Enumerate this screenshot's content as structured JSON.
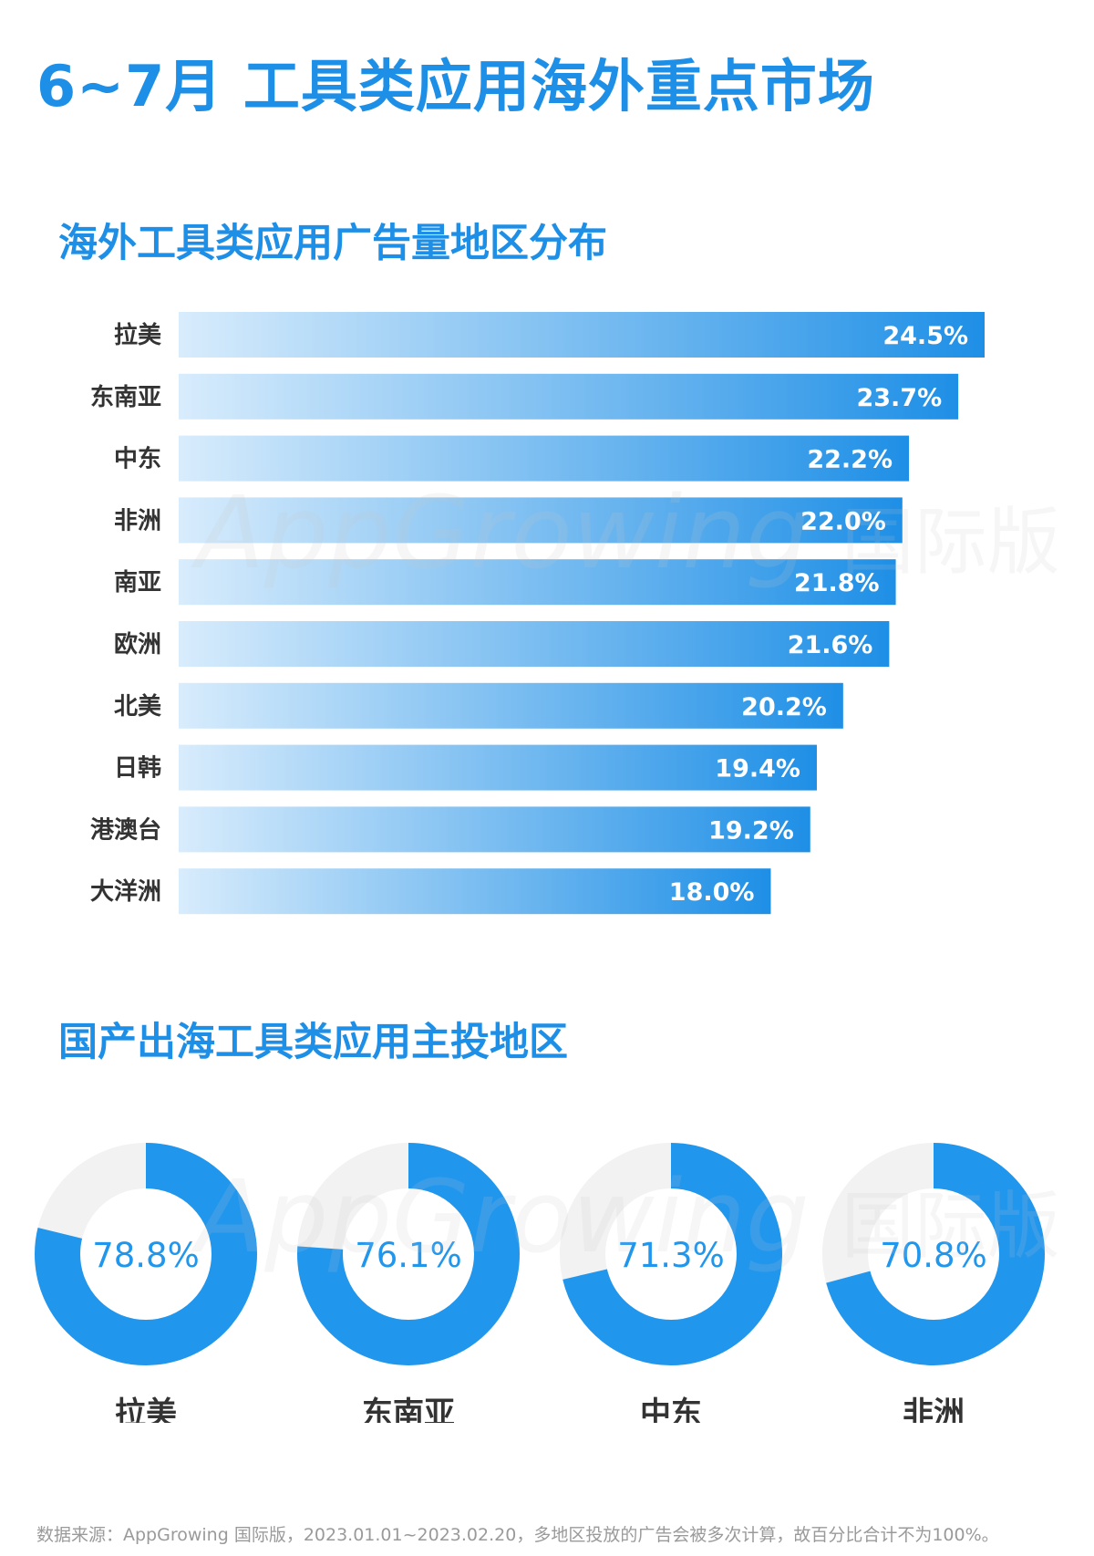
{
  "title": "6~7月 工具类应用海外重点市场",
  "colors": {
    "accent": "#1e8fe6",
    "bar_start": "#d8ecfc",
    "bar_end": "#1e8fe6",
    "ring_track": "#f2f2f2",
    "ring_fill": "#2196ed"
  },
  "chart_data": [
    {
      "type": "bar",
      "orientation": "horizontal",
      "title": "海外工具类应用广告量地区分布",
      "categories": [
        "拉美",
        "东南亚",
        "中东",
        "非洲",
        "南亚",
        "欧洲",
        "北美",
        "日韩",
        "港澳台",
        "大洋洲"
      ],
      "values": [
        24.5,
        23.7,
        22.2,
        22.0,
        21.8,
        21.6,
        20.2,
        19.4,
        19.2,
        18.0
      ],
      "value_labels": [
        "24.5%",
        "23.7%",
        "22.2%",
        "22.0%",
        "21.8%",
        "21.6%",
        "20.2%",
        "19.4%",
        "19.2%",
        "18.0%"
      ],
      "unit": "%",
      "xlim": [
        0,
        24.5
      ],
      "grid": false,
      "legend": "none"
    },
    {
      "type": "pie",
      "style": "donut",
      "title": "国产出海工具类应用主投地区",
      "categories": [
        "拉美",
        "东南亚",
        "中东",
        "非洲"
      ],
      "values": [
        78.8,
        76.1,
        71.3,
        70.8
      ],
      "value_labels": [
        "78.8%",
        "76.1%",
        "71.3%",
        "70.8%"
      ],
      "unit": "%",
      "legend": "none"
    }
  ],
  "footnote": "数据来源：AppGrowing 国际版，2023.01.01~2023.02.20，多地区投放的广告会被多次计算，故百分比合计不为100%。",
  "watermark": {
    "brand": "AppGrowing",
    "suffix": "国际版"
  }
}
